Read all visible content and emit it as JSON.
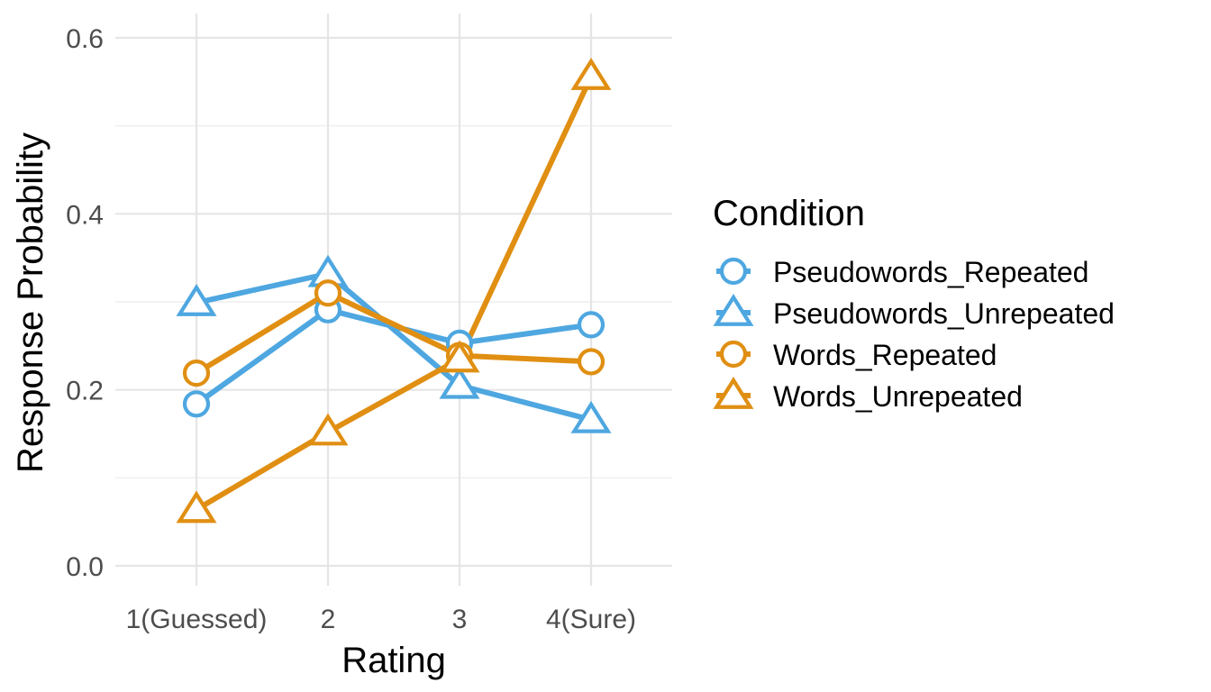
{
  "chart_data": {
    "type": "line",
    "title": "",
    "xlabel": "Rating",
    "ylabel": "Response Probability",
    "categories": [
      "1(Guessed)",
      "2",
      "3",
      "4(Sure)"
    ],
    "ylim": [
      0,
      0.6
    ],
    "yticks": [
      0.0,
      0.2,
      0.4,
      0.6
    ],
    "ytick_labels": [
      "0.0",
      "0.2",
      "0.4",
      "0.6"
    ],
    "grid": true,
    "legend": {
      "title": "Condition",
      "position": "right"
    },
    "series": [
      {
        "name": "Pseudowords_Repeated",
        "values": [
          0.184,
          0.291,
          0.253,
          0.274
        ],
        "color": "#4ea7e0",
        "marker": "circle"
      },
      {
        "name": "Pseudowords_Unrepeated",
        "values": [
          0.299,
          0.332,
          0.205,
          0.166
        ],
        "color": "#4ea7e0",
        "marker": "triangle"
      },
      {
        "name": "Words_Repeated",
        "values": [
          0.219,
          0.31,
          0.239,
          0.232
        ],
        "color": "#e08f12",
        "marker": "circle"
      },
      {
        "name": "Words_Unrepeated",
        "values": [
          0.064,
          0.152,
          0.235,
          0.556
        ],
        "color": "#e08f12",
        "marker": "triangle"
      }
    ]
  }
}
